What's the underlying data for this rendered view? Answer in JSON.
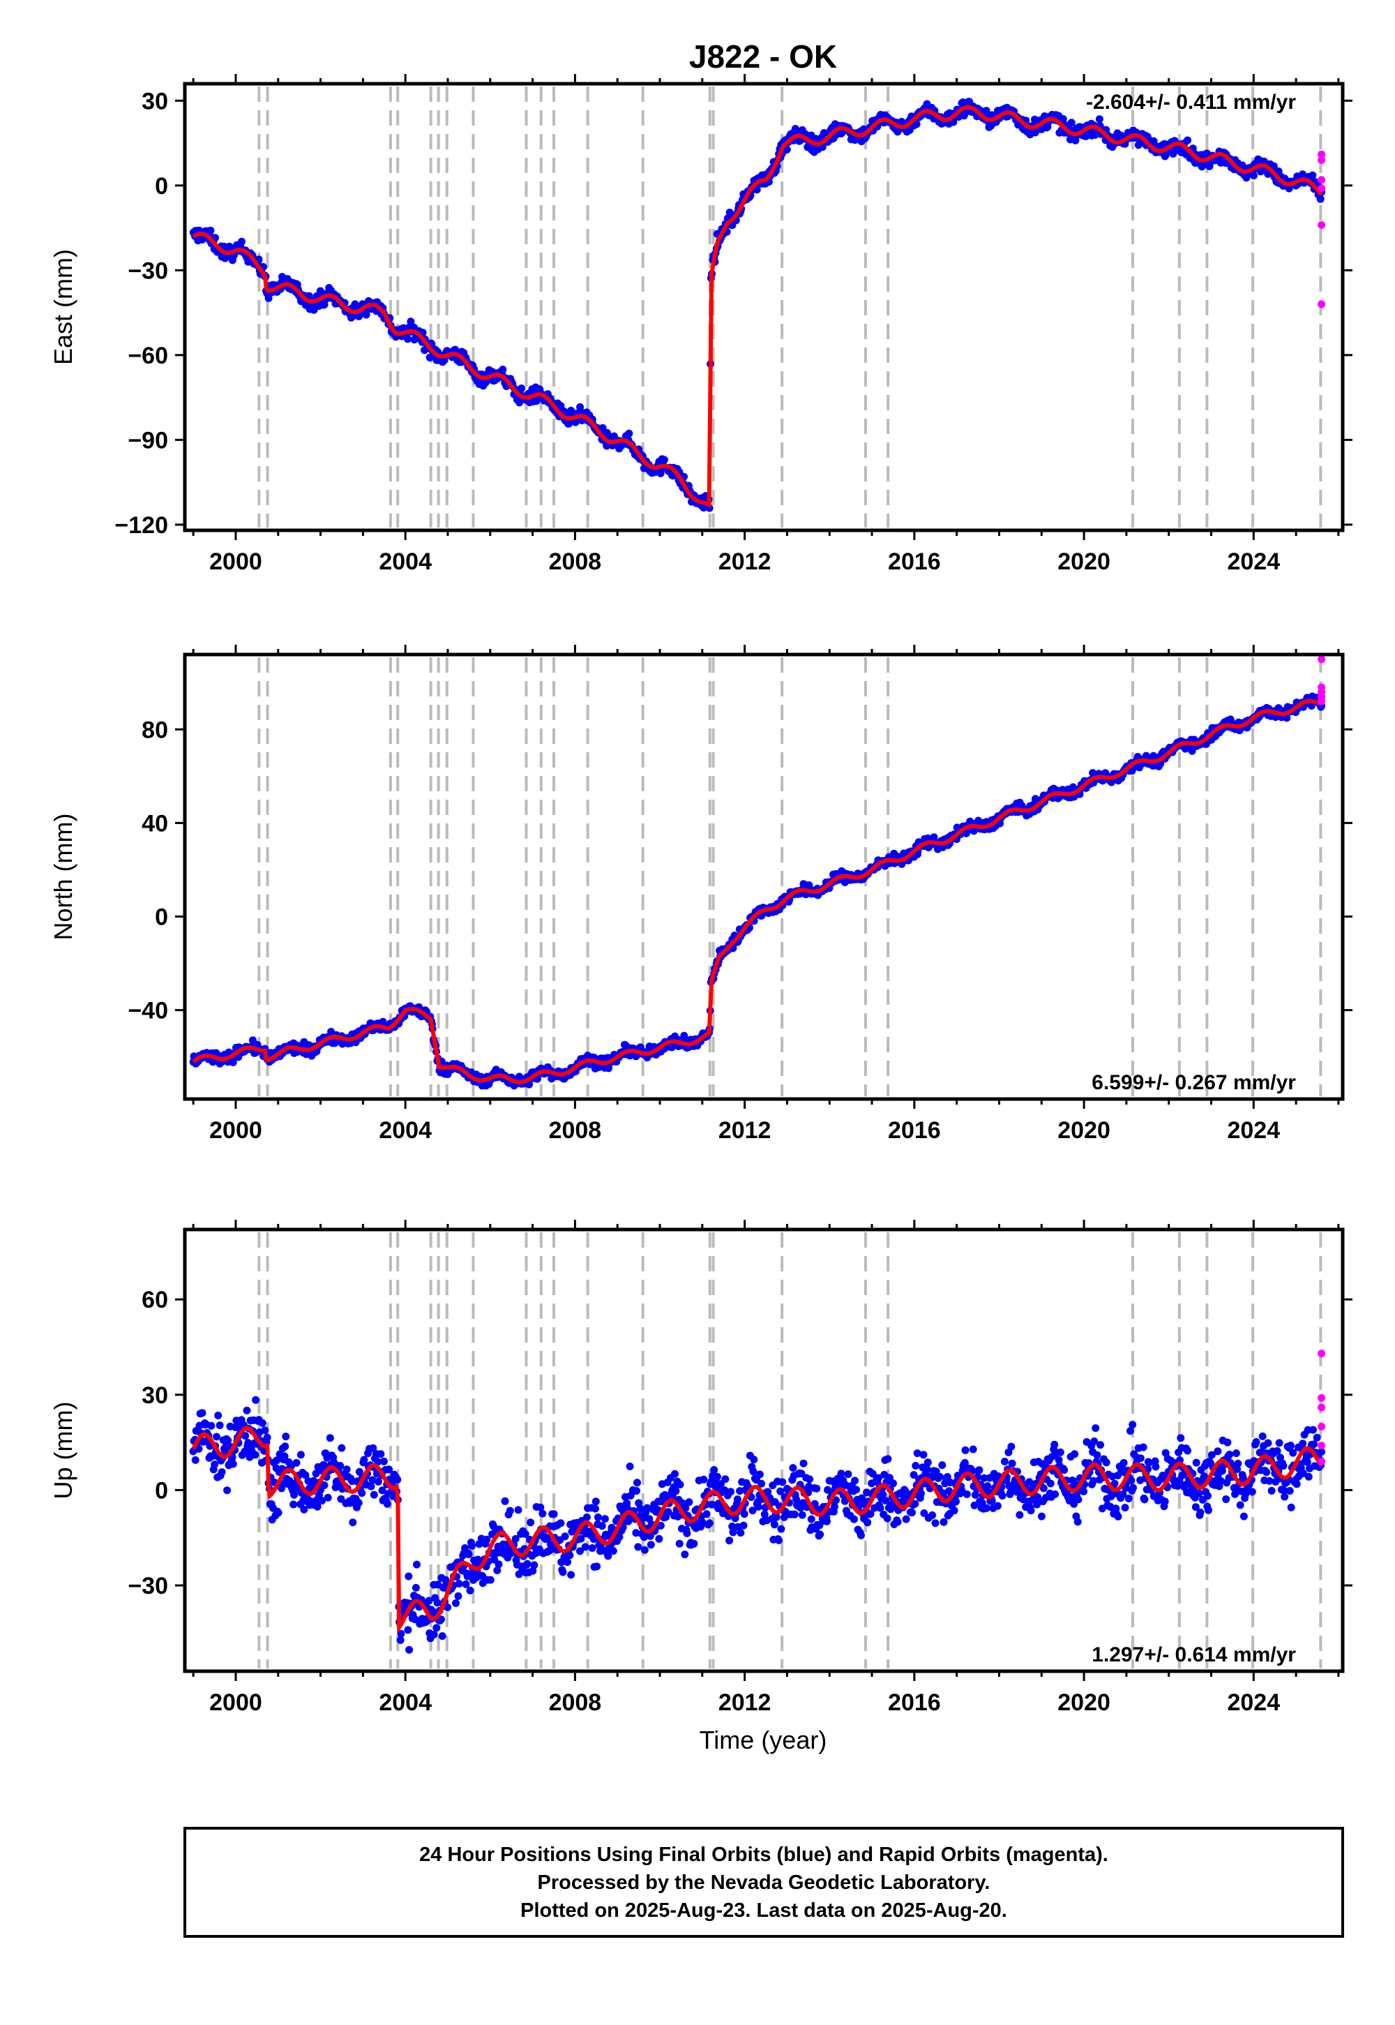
{
  "chart_data": {
    "type": "scatter",
    "title": "J822 - OK",
    "xlabel": "Time (year)",
    "xlim": [
      1998.8,
      2026.1
    ],
    "xticks": [
      2000,
      2004,
      2008,
      2012,
      2016,
      2020,
      2024
    ],
    "vlines": [
      2000.55,
      2000.75,
      2003.65,
      2003.82,
      2004.6,
      2004.78,
      2004.98,
      2005.6,
      2006.85,
      2007.2,
      2007.5,
      2008.3,
      2009.6,
      2011.18,
      2011.26,
      2012.88,
      2014.85,
      2015.38,
      2021.15,
      2022.25,
      2022.9,
      2023.98,
      2025.58
    ],
    "footer": [
      "24 Hour Positions Using Final Orbits (blue) and Rapid Orbits (magenta).",
      "Processed by the Nevada Geodetic Laboratory.",
      "Plotted on 2025-Aug-23. Last data on 2025-Aug-20."
    ],
    "colors": {
      "final": "#0000ff",
      "rapid": "#ff00ff",
      "model": "#ff0000",
      "event": "#bbbbbb"
    },
    "panels": [
      {
        "id": "east",
        "ylabel": "East (mm)",
        "ylim": [
          -122,
          36
        ],
        "yticks": [
          30,
          0,
          -30,
          -60,
          -90,
          -120
        ],
        "ytick_labels": [
          "30",
          "0",
          "−30",
          "−60",
          "−90",
          "−120"
        ],
        "rate": "-2.604+/- 0.411 mm/yr",
        "rate_position": "top-right",
        "scatter_noise": 2.2,
        "series": [
          {
            "x": [
              1999.0,
              2000.0,
              2000.7,
              2000.72,
              2001.5,
              2002.5,
              2003.5,
              2003.75,
              2004.5,
              2005.5,
              2006.5,
              2007.5,
              2008.5,
              2009.5,
              2010.5,
              2011.18,
              2011.2,
              2011.35,
              2011.6,
              2012.0,
              2012.5,
              2012.9,
              2013.5,
              2014.5,
              2015.5,
              2016.5,
              2017.5,
              2018.5,
              2019.5,
              2020.5,
              2021.5,
              2022.5,
              2023.5,
              2024.5,
              2025.6
            ],
            "values": [
              -18,
              -23,
              -30,
              -35,
              -38,
              -42,
              -45,
              -50,
              -56,
              -64,
              -71,
              -78,
              -86,
              -95,
              -104,
              -115,
              -35,
              -22,
              -12,
              -5,
              2,
              15,
              16,
              19,
              22,
              25,
              26,
              23,
              21,
              18,
              15,
              12,
              8,
              4,
              -2
            ]
          }
        ],
        "seasonal_amplitude": 2.0,
        "rapid": {
          "x": [
            2025.6,
            2025.6,
            2025.6,
            2025.6,
            2025.6,
            2025.6
          ],
          "values": [
            11,
            9,
            2,
            -1,
            -14,
            -42
          ]
        }
      },
      {
        "id": "north",
        "ylabel": "North (mm)",
        "ylim": [
          -78,
          112
        ],
        "yticks": [
          80,
          40,
          0,
          -40
        ],
        "ytick_labels": [
          "80",
          "40",
          "0",
          "−40"
        ],
        "rate": "6.599+/- 0.267 mm/yr",
        "rate_position": "bottom-right",
        "scatter_noise": 2.0,
        "series": [
          {
            "x": [
              1999.0,
              2000.7,
              2000.72,
              2003.6,
              2004.0,
              2004.6,
              2004.8,
              2005.5,
              2006.5,
              2007.5,
              2008.5,
              2009.5,
              2010.5,
              2011.18,
              2011.2,
              2011.4,
              2011.7,
              2012.0,
              2012.5,
              2013.0,
              2014.0,
              2015.0,
              2016.0,
              2017.0,
              2018.0,
              2019.0,
              2020.0,
              2021.0,
              2022.0,
              2023.0,
              2024.0,
              2025.6
            ],
            "values": [
              -62,
              -56,
              -60,
              -47,
              -40,
              -43,
              -63,
              -68,
              -70,
              -67,
              -62,
              -58,
              -54,
              -51,
              -30,
              -18,
              -10,
              -5,
              3,
              8,
              14,
              20,
              28,
              35,
              42,
              49,
              56,
              63,
              70,
              78,
              85,
              92
            ]
          }
        ],
        "seasonal_amplitude": 1.5,
        "rapid": {
          "x": [
            2025.6,
            2025.6,
            2025.6,
            2025.6,
            2025.6
          ],
          "values": [
            110,
            98,
            96,
            94,
            92
          ]
        }
      },
      {
        "id": "up",
        "ylabel": "Up (mm)",
        "ylim": [
          -57,
          82
        ],
        "yticks": [
          60,
          30,
          0,
          -30
        ],
        "ytick_labels": [
          "60",
          "30",
          "0",
          "−30"
        ],
        "rate": "1.297+/- 0.614 mm/yr",
        "rate_position": "bottom-right",
        "scatter_noise": 8.0,
        "series": [
          {
            "x": [
              1999.0,
              2000.5,
              2000.75,
              2000.78,
              2002.0,
              2003.6,
              2003.82,
              2003.85,
              2004.6,
              2005.0,
              2005.6,
              2006.0,
              2007.0,
              2008.0,
              2009.0,
              2010.0,
              2011.0,
              2012.0,
              2013.0,
              2014.0,
              2015.0,
              2016.0,
              2017.0,
              2018.0,
              2019.0,
              2020.0,
              2021.0,
              2022.0,
              2023.0,
              2024.0,
              2025.6
            ],
            "values": [
              13,
              16,
              18,
              2,
              3,
              4,
              5,
              -40,
              -38,
              -32,
              -22,
              -18,
              -16,
              -15,
              -12,
              -8,
              -5,
              -3,
              -3,
              -4,
              -3,
              -1,
              1,
              2,
              3,
              4,
              4,
              4,
              5,
              6,
              10
            ]
          }
        ],
        "seasonal_amplitude": 4.0,
        "rapid": {
          "x": [
            2025.6,
            2025.6,
            2025.6,
            2025.6,
            2025.6,
            2025.6
          ],
          "values": [
            43,
            29,
            26,
            20,
            14,
            9
          ]
        }
      }
    ]
  }
}
